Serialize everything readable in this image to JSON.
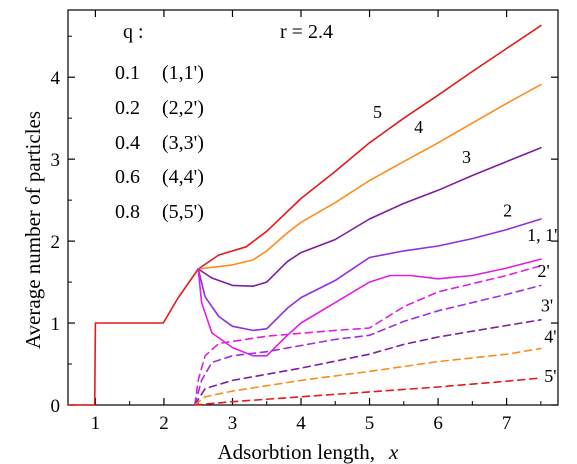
{
  "chart_data": {
    "type": "line",
    "xlabel": "Adsorbtion length,",
    "xlabel_var": "x",
    "ylabel": "Average number of particles",
    "xlim": [
      0.6,
      7.75
    ],
    "ylim": [
      0,
      4.82
    ],
    "x_ticks": [
      "1",
      "2",
      "3",
      "4",
      "5",
      "6",
      "7"
    ],
    "y_ticks": [
      "0",
      "1",
      "2",
      "3",
      "4"
    ],
    "grid": false,
    "annotations": {
      "r_label": "r = 2.4",
      "q_header": "q :",
      "legend_rows": [
        {
          "q": "0.1",
          "ids": "(1,1')"
        },
        {
          "q": "0.2",
          "ids": "(2,2')"
        },
        {
          "q": "0.4",
          "ids": "(3,3')"
        },
        {
          "q": "0.6",
          "ids": "(4,4')"
        },
        {
          "q": "0.8",
          "ids": "(5,5')"
        }
      ]
    },
    "series": [
      {
        "name": "5",
        "color": "#e41a1c",
        "style": "solid",
        "points": [
          [
            0.6,
            0
          ],
          [
            0.95,
            0
          ],
          [
            0.99,
            0
          ],
          [
            1.0,
            1
          ],
          [
            1.5,
            1
          ],
          [
            1.99,
            1
          ],
          [
            2.2,
            1.3
          ],
          [
            2.5,
            1.66
          ],
          [
            2.8,
            1.83
          ],
          [
            3.2,
            1.93
          ],
          [
            3.5,
            2.12
          ],
          [
            4.0,
            2.52
          ],
          [
            4.5,
            2.85
          ],
          [
            5.0,
            3.2
          ],
          [
            5.5,
            3.5
          ],
          [
            6.0,
            3.78
          ],
          [
            6.5,
            4.07
          ],
          [
            7.0,
            4.35
          ],
          [
            7.5,
            4.63
          ]
        ]
      },
      {
        "name": "4",
        "color": "#ff8c1a",
        "style": "solid",
        "points": [
          [
            2.5,
            1.66
          ],
          [
            2.7,
            1.68
          ],
          [
            3.0,
            1.71
          ],
          [
            3.3,
            1.77
          ],
          [
            3.5,
            1.88
          ],
          [
            3.8,
            2.1
          ],
          [
            4.0,
            2.23
          ],
          [
            4.5,
            2.47
          ],
          [
            5.0,
            2.74
          ],
          [
            5.5,
            2.97
          ],
          [
            6.0,
            3.2
          ],
          [
            6.5,
            3.44
          ],
          [
            7.0,
            3.68
          ],
          [
            7.5,
            3.91
          ]
        ]
      },
      {
        "name": "3",
        "color": "#7b1fa2",
        "style": "solid",
        "points": [
          [
            2.5,
            1.66
          ],
          [
            2.7,
            1.55
          ],
          [
            3.0,
            1.46
          ],
          [
            3.3,
            1.45
          ],
          [
            3.5,
            1.5
          ],
          [
            3.8,
            1.75
          ],
          [
            4.0,
            1.86
          ],
          [
            4.5,
            2.02
          ],
          [
            5.0,
            2.27
          ],
          [
            5.5,
            2.46
          ],
          [
            6.0,
            2.62
          ],
          [
            6.5,
            2.8
          ],
          [
            7.0,
            2.97
          ],
          [
            7.5,
            3.14
          ]
        ]
      },
      {
        "name": "2",
        "color": "#8e2fe0",
        "style": "solid",
        "points": [
          [
            2.5,
            1.66
          ],
          [
            2.6,
            1.32
          ],
          [
            2.8,
            1.08
          ],
          [
            3.0,
            0.96
          ],
          [
            3.3,
            0.91
          ],
          [
            3.5,
            0.93
          ],
          [
            3.8,
            1.18
          ],
          [
            4.0,
            1.31
          ],
          [
            4.5,
            1.52
          ],
          [
            5.0,
            1.8
          ],
          [
            5.5,
            1.88
          ],
          [
            6.0,
            1.94
          ],
          [
            6.5,
            2.03
          ],
          [
            7.0,
            2.14
          ],
          [
            7.5,
            2.27
          ]
        ]
      },
      {
        "name": "1, 1'",
        "color": "#e020e0",
        "style": "solid",
        "points": [
          [
            2.5,
            1.66
          ],
          [
            2.55,
            1.25
          ],
          [
            2.7,
            0.88
          ],
          [
            3.0,
            0.7
          ],
          [
            3.3,
            0.6
          ],
          [
            3.5,
            0.6
          ],
          [
            3.8,
            0.85
          ],
          [
            4.0,
            1.0
          ],
          [
            4.5,
            1.25
          ],
          [
            5.0,
            1.5
          ],
          [
            5.3,
            1.58
          ],
          [
            5.6,
            1.58
          ],
          [
            6.0,
            1.54
          ],
          [
            6.5,
            1.58
          ],
          [
            7.0,
            1.67
          ],
          [
            7.5,
            1.78
          ]
        ]
      },
      {
        "name": "1'",
        "color": "#e020e0",
        "style": "dashed",
        "points": [
          [
            2.45,
            0
          ],
          [
            2.5,
            0.3
          ],
          [
            2.6,
            0.6
          ],
          [
            2.8,
            0.75
          ],
          [
            3.5,
            0.84
          ],
          [
            4.5,
            0.91
          ],
          [
            5.0,
            0.94
          ],
          [
            5.5,
            1.2
          ],
          [
            6.0,
            1.38
          ],
          [
            6.5,
            1.48
          ],
          [
            7.0,
            1.58
          ],
          [
            7.5,
            1.7
          ]
        ]
      },
      {
        "name": "2'",
        "color": "#9b30e8",
        "style": "dashed",
        "points": [
          [
            2.45,
            0
          ],
          [
            2.55,
            0.3
          ],
          [
            2.7,
            0.52
          ],
          [
            3.0,
            0.6
          ],
          [
            3.5,
            0.65
          ],
          [
            4.5,
            0.8
          ],
          [
            5.0,
            0.85
          ],
          [
            5.5,
            1.02
          ],
          [
            6.0,
            1.15
          ],
          [
            6.5,
            1.25
          ],
          [
            7.0,
            1.35
          ],
          [
            7.5,
            1.46
          ]
        ]
      },
      {
        "name": "3'",
        "color": "#7b1fa2",
        "style": "dashed",
        "points": [
          [
            2.45,
            0
          ],
          [
            2.6,
            0.2
          ],
          [
            3.0,
            0.3
          ],
          [
            4.0,
            0.45
          ],
          [
            5.0,
            0.62
          ],
          [
            5.5,
            0.74
          ],
          [
            6.0,
            0.83
          ],
          [
            6.5,
            0.9
          ],
          [
            7.0,
            0.97
          ],
          [
            7.5,
            1.04
          ]
        ]
      },
      {
        "name": "4'",
        "color": "#ff8c1a",
        "style": "dashed",
        "points": [
          [
            2.45,
            0
          ],
          [
            2.6,
            0.1
          ],
          [
            3.0,
            0.17
          ],
          [
            4.0,
            0.3
          ],
          [
            5.0,
            0.41
          ],
          [
            6.0,
            0.53
          ],
          [
            7.0,
            0.62
          ],
          [
            7.5,
            0.69
          ]
        ]
      },
      {
        "name": "5'",
        "color": "#e41a1c",
        "style": "dashed",
        "points": [
          [
            2.45,
            0
          ],
          [
            3.0,
            0.04
          ],
          [
            4.0,
            0.1
          ],
          [
            5.0,
            0.16
          ],
          [
            6.0,
            0.22
          ],
          [
            7.0,
            0.29
          ],
          [
            7.5,
            0.33
          ]
        ]
      }
    ],
    "curve_labels": [
      {
        "text": "5",
        "x": 5.05,
        "y": 3.5
      },
      {
        "text": "4",
        "x": 5.65,
        "y": 3.32
      },
      {
        "text": "3",
        "x": 6.35,
        "y": 2.95
      },
      {
        "text": "2",
        "x": 6.95,
        "y": 2.3
      },
      {
        "text": "1, 1'",
        "x": 7.3,
        "y": 2.0
      },
      {
        "text": "2'",
        "x": 7.45,
        "y": 1.56
      },
      {
        "text": "3'",
        "x": 7.5,
        "y": 1.14
      },
      {
        "text": "4'",
        "x": 7.55,
        "y": 0.76
      },
      {
        "text": "5'",
        "x": 7.55,
        "y": 0.28
      }
    ]
  }
}
